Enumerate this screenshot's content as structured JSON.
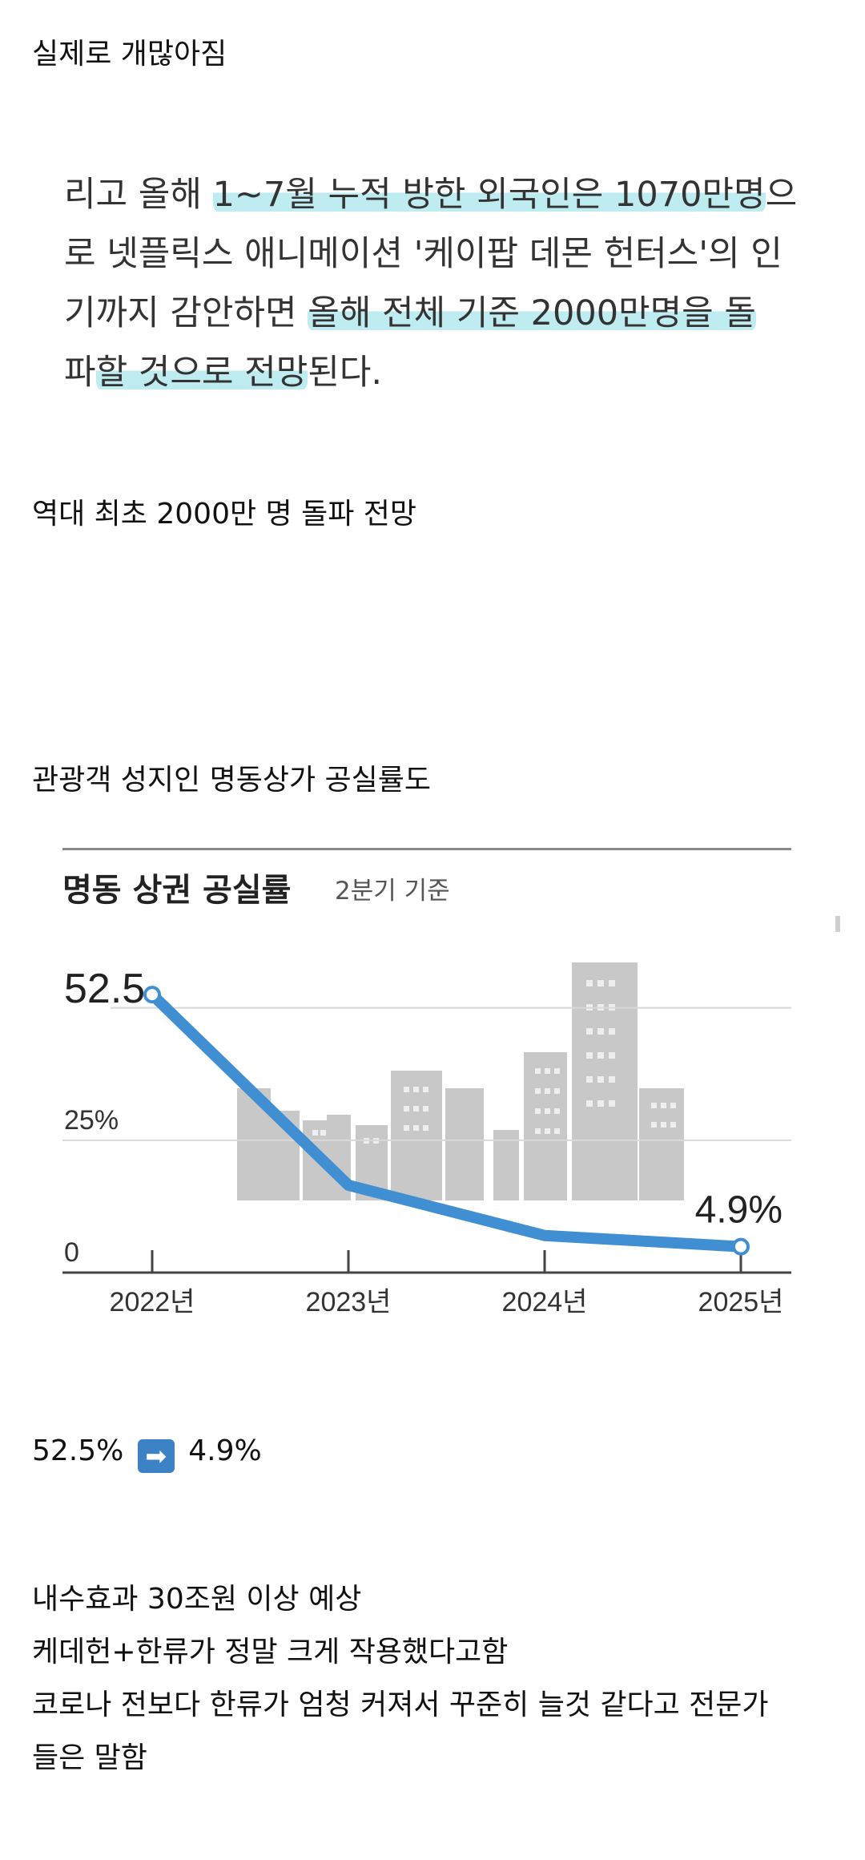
{
  "post": {
    "intro": "실제로 개많아짐",
    "quote_lines": [
      {
        "plain_before": "리고 올해 ",
        "highlight": "1~7월 누적 방한 외국인은 1070만명",
        "plain_after": "으"
      },
      {
        "plain_before": "로 넷플릭스 애니메이션 '케이팝 데몬 헌터스'의 인",
        "highlight": "",
        "plain_after": ""
      },
      {
        "plain_before": "기까지 감안하면 ",
        "highlight": "올해 전체 기준 2000만명을 돌",
        "plain_after": ""
      },
      {
        "plain_before": "파",
        "highlight": "할 것으로 전망",
        "plain_after": "된다."
      }
    ],
    "headline_1": "역대 최초 2000만 명 돌파 전망",
    "headline_2": "관광객 성지인 명동상가 공실률도",
    "compare": {
      "from": "52.5%",
      "arrow_icon": "right-arrow-icon",
      "arrow_glyph": "➡",
      "to": "4.9%"
    },
    "closing_lines": [
      "내수효과 30조원 이상 예상",
      "케데헌+한류가 정말 크게 작용했다고함",
      "코로나 전보다 한류가 엄청 커져서 꾸준히 늘것 같다고 전문가",
      "들은 말함"
    ]
  },
  "colors": {
    "highlight": "#b2e8ee",
    "line": "#3f8fd2",
    "buildings": "#c8c8c8",
    "axis": "#333333"
  },
  "chart_data": {
    "type": "line",
    "title": "명동 상권 공실률",
    "subtitle": "2분기 기준",
    "categories": [
      "2022년",
      "2023년",
      "2024년",
      "2025년"
    ],
    "values": [
      52.5,
      16.5,
      7.0,
      4.9
    ],
    "y_ticks": [
      "0",
      "25%"
    ],
    "y_tick_values": [
      0,
      25
    ],
    "ylim": [
      0,
      56
    ],
    "labels": [
      {
        "index": 0,
        "text": "52.5"
      },
      {
        "index": 3,
        "text": "4.9%"
      }
    ],
    "grid": true,
    "xlabel": "",
    "ylabel": ""
  }
}
